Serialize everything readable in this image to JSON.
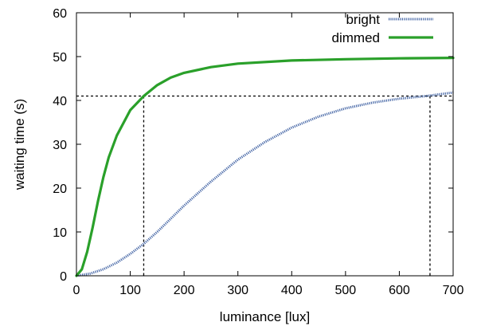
{
  "chart_data": {
    "type": "line",
    "title": "",
    "xlabel": "luminance [lux]",
    "ylabel": "waiting time (s)",
    "xlim": [
      0,
      700
    ],
    "ylim": [
      0,
      60
    ],
    "xticks": [
      0,
      100,
      200,
      300,
      400,
      500,
      600,
      700
    ],
    "yticks": [
      0,
      10,
      20,
      30,
      40,
      50,
      60
    ],
    "grid": false,
    "legend_position": "top-right",
    "series": [
      {
        "name": "bright",
        "color": "#4a6aa8",
        "style": "dotted",
        "x": [
          0,
          25,
          50,
          75,
          100,
          125,
          150,
          175,
          200,
          250,
          300,
          350,
          400,
          450,
          500,
          550,
          600,
          650,
          700
        ],
        "y": [
          0,
          0.5,
          1.5,
          3.0,
          5.0,
          7.3,
          10.0,
          13.0,
          16.0,
          21.5,
          26.5,
          30.5,
          33.8,
          36.3,
          38.2,
          39.5,
          40.4,
          41.0,
          41.8
        ]
      },
      {
        "name": "dimmed",
        "color": "#2aa02a",
        "style": "solid",
        "x": [
          0,
          10,
          20,
          30,
          40,
          50,
          60,
          75,
          100,
          125,
          150,
          175,
          200,
          250,
          300,
          400,
          500,
          600,
          700
        ],
        "y": [
          0,
          1.5,
          5.5,
          11.0,
          17.0,
          22.5,
          27.0,
          32.0,
          37.8,
          41.0,
          43.5,
          45.2,
          46.3,
          47.6,
          48.4,
          49.1,
          49.4,
          49.6,
          49.7
        ]
      }
    ],
    "reference_lines": {
      "y": 41,
      "x_dimmed": 125,
      "x_bright": 657,
      "style": "dashed"
    }
  }
}
